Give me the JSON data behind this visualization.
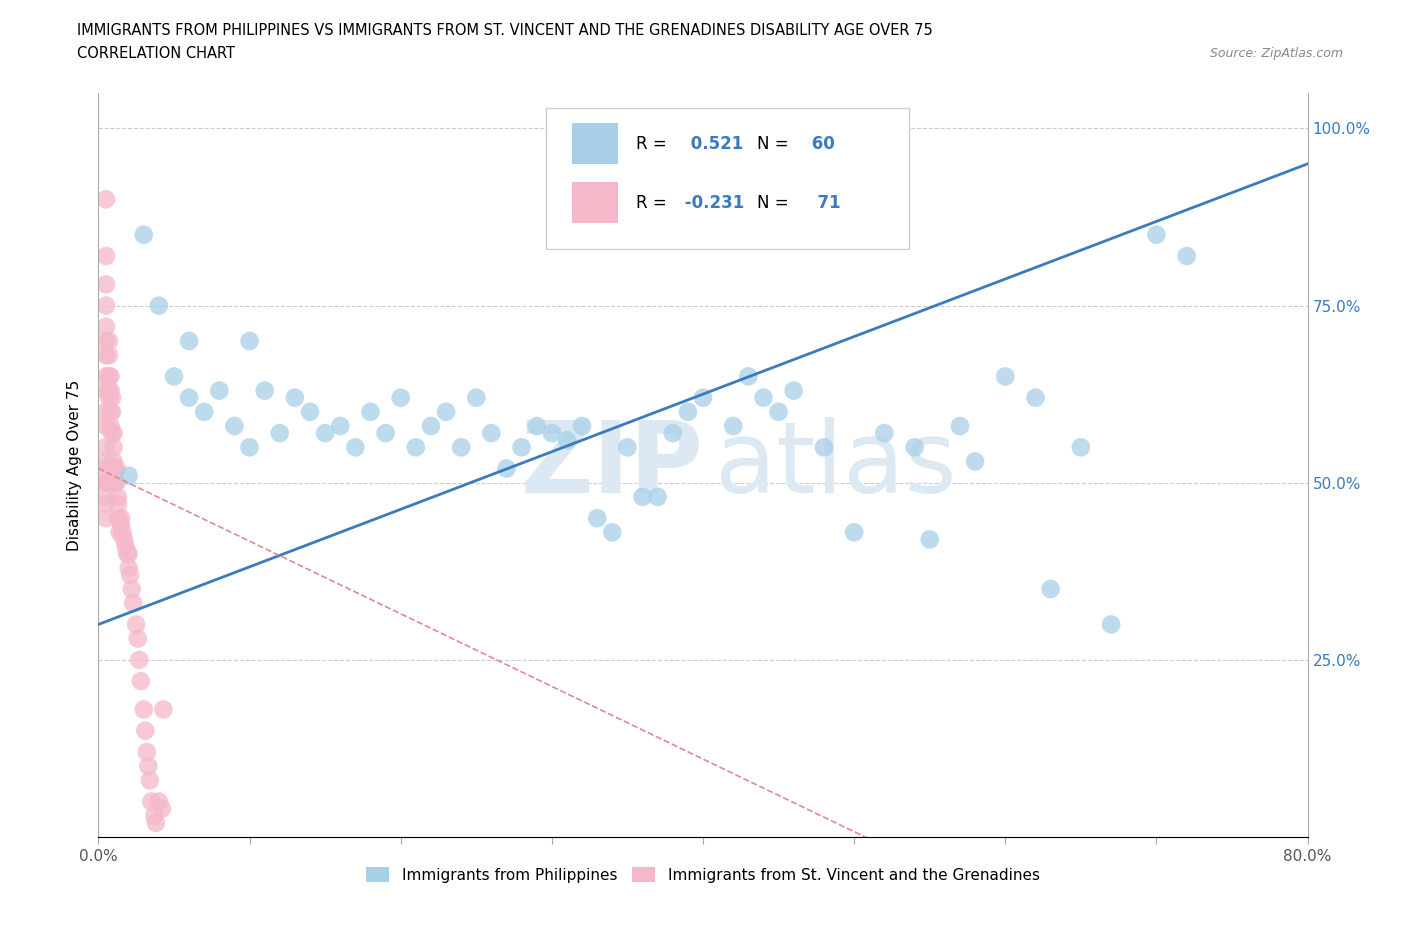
{
  "title": "IMMIGRANTS FROM PHILIPPINES VS IMMIGRANTS FROM ST. VINCENT AND THE GRENADINES DISABILITY AGE OVER 75",
  "subtitle": "CORRELATION CHART",
  "source": "Source: ZipAtlas.com",
  "ylabel": "Disability Age Over 75",
  "xlim": [
    0.0,
    0.8
  ],
  "ylim": [
    0.0,
    1.05
  ],
  "xticks": [
    0.0,
    0.1,
    0.2,
    0.3,
    0.4,
    0.5,
    0.6,
    0.7,
    0.8
  ],
  "xtick_labels": [
    "0.0%",
    "",
    "",
    "",
    "",
    "",
    "",
    "",
    "80.0%"
  ],
  "yticks": [
    0.0,
    0.25,
    0.5,
    0.75,
    1.0
  ],
  "ytick_labels_right": [
    "",
    "25.0%",
    "50.0%",
    "75.0%",
    "100.0%"
  ],
  "r_philippines": 0.521,
  "n_philippines": 60,
  "r_stvincent": -0.231,
  "n_stvincent": 71,
  "color_philippines": "#a8cfe8",
  "color_stvincent": "#f4b8c8",
  "trendline_philippines_color": "#3a7abf",
  "trendline_stvincent_color": "#e08898",
  "watermark_zip": "ZIP",
  "watermark_atlas": "atlas",
  "philippines_x": [
    0.02,
    0.03,
    0.04,
    0.05,
    0.06,
    0.06,
    0.07,
    0.08,
    0.09,
    0.1,
    0.1,
    0.11,
    0.12,
    0.13,
    0.14,
    0.15,
    0.16,
    0.17,
    0.18,
    0.19,
    0.2,
    0.21,
    0.22,
    0.23,
    0.24,
    0.25,
    0.26,
    0.27,
    0.28,
    0.29,
    0.3,
    0.31,
    0.32,
    0.33,
    0.34,
    0.35,
    0.36,
    0.37,
    0.38,
    0.39,
    0.4,
    0.42,
    0.43,
    0.44,
    0.45,
    0.46,
    0.48,
    0.5,
    0.52,
    0.54,
    0.55,
    0.57,
    0.58,
    0.6,
    0.62,
    0.63,
    0.65,
    0.67,
    0.7,
    0.72
  ],
  "philippines_y": [
    0.51,
    0.85,
    0.75,
    0.65,
    0.62,
    0.7,
    0.6,
    0.63,
    0.58,
    0.7,
    0.55,
    0.63,
    0.57,
    0.62,
    0.6,
    0.57,
    0.58,
    0.55,
    0.6,
    0.57,
    0.62,
    0.55,
    0.58,
    0.6,
    0.55,
    0.62,
    0.57,
    0.52,
    0.55,
    0.58,
    0.57,
    0.56,
    0.58,
    0.45,
    0.43,
    0.55,
    0.48,
    0.48,
    0.57,
    0.6,
    0.62,
    0.58,
    0.65,
    0.62,
    0.6,
    0.63,
    0.55,
    0.43,
    0.57,
    0.55,
    0.42,
    0.58,
    0.53,
    0.65,
    0.62,
    0.35,
    0.55,
    0.3,
    0.85,
    0.82
  ],
  "stvincent_x": [
    0.005,
    0.005,
    0.005,
    0.005,
    0.005,
    0.005,
    0.005,
    0.005,
    0.005,
    0.005,
    0.005,
    0.005,
    0.005,
    0.005,
    0.005,
    0.005,
    0.005,
    0.005,
    0.005,
    0.005,
    0.007,
    0.007,
    0.007,
    0.007,
    0.007,
    0.008,
    0.008,
    0.008,
    0.008,
    0.009,
    0.009,
    0.009,
    0.01,
    0.01,
    0.01,
    0.01,
    0.01,
    0.011,
    0.011,
    0.012,
    0.012,
    0.013,
    0.013,
    0.013,
    0.014,
    0.015,
    0.015,
    0.016,
    0.017,
    0.018,
    0.019,
    0.02,
    0.02,
    0.021,
    0.022,
    0.023,
    0.025,
    0.026,
    0.027,
    0.028,
    0.03,
    0.031,
    0.032,
    0.033,
    0.034,
    0.035,
    0.037,
    0.038,
    0.04,
    0.042,
    0.043
  ],
  "stvincent_y": [
    0.82,
    0.78,
    0.75,
    0.72,
    0.7,
    0.68,
    0.65,
    0.63,
    0.6,
    0.58,
    0.55,
    0.53,
    0.5,
    0.5,
    0.52,
    0.5,
    0.48,
    0.47,
    0.45,
    0.9,
    0.7,
    0.68,
    0.65,
    0.63,
    0.62,
    0.65,
    0.63,
    0.6,
    0.58,
    0.62,
    0.6,
    0.57,
    0.57,
    0.55,
    0.53,
    0.52,
    0.5,
    0.52,
    0.5,
    0.52,
    0.5,
    0.48,
    0.47,
    0.45,
    0.43,
    0.45,
    0.44,
    0.43,
    0.42,
    0.41,
    0.4,
    0.38,
    0.4,
    0.37,
    0.35,
    0.33,
    0.3,
    0.28,
    0.25,
    0.22,
    0.18,
    0.15,
    0.12,
    0.1,
    0.08,
    0.05,
    0.03,
    0.02,
    0.05,
    0.04,
    0.18
  ]
}
